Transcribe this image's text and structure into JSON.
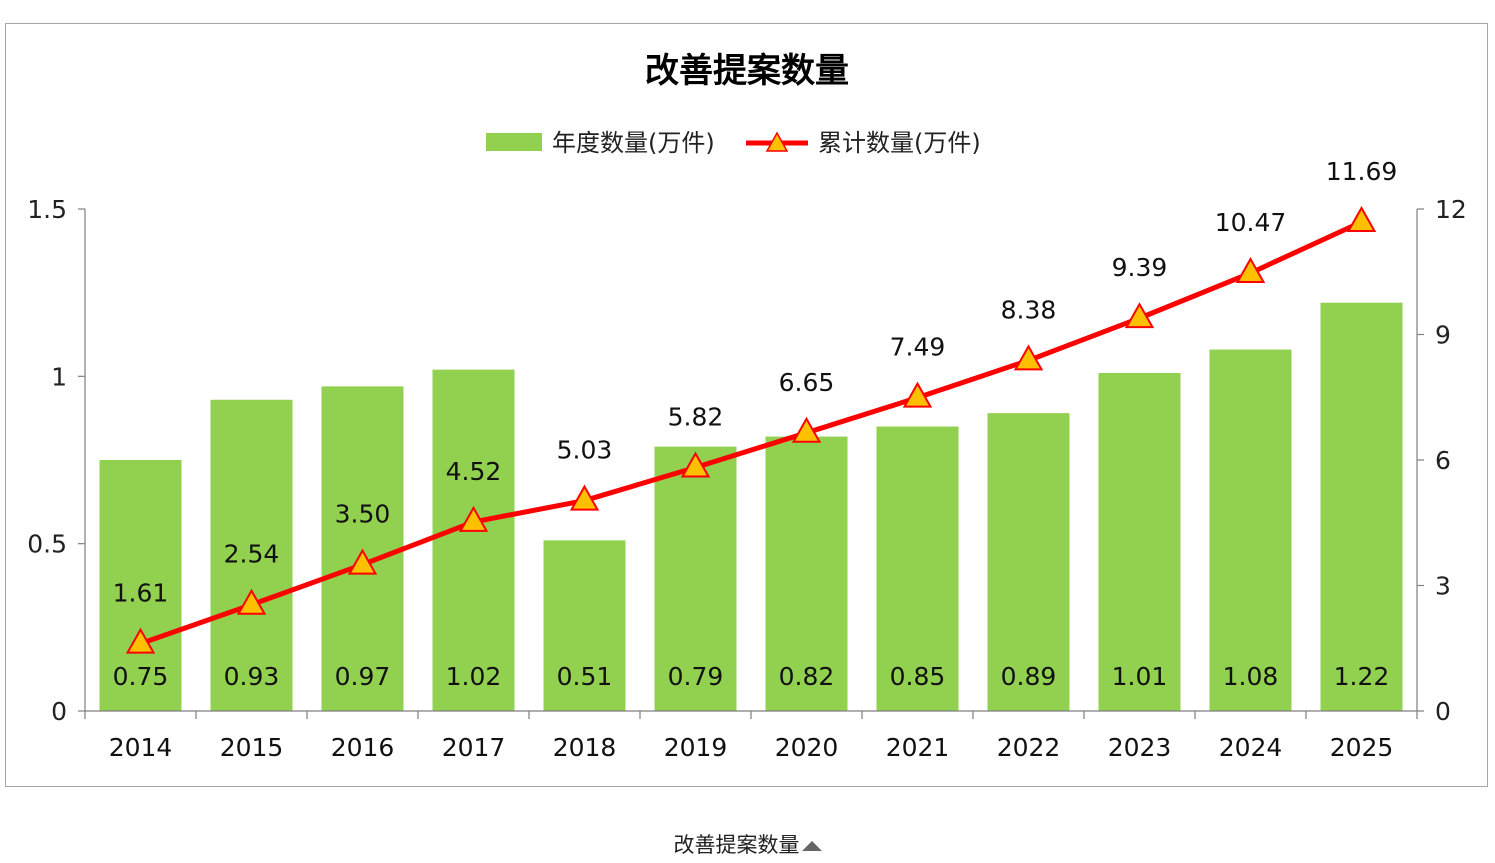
{
  "chart_data": {
    "type": "bar",
    "title": "改善提案数量",
    "categories": [
      "2014",
      "2015",
      "2016",
      "2017",
      "2018",
      "2019",
      "2020",
      "2021",
      "2022",
      "2023",
      "2024",
      "2025"
    ],
    "series": [
      {
        "name": "年度数量(万件)",
        "type": "bar",
        "axis": "left",
        "color": "#92d050",
        "values": [
          0.75,
          0.93,
          0.97,
          1.02,
          0.51,
          0.79,
          0.82,
          0.85,
          0.89,
          1.01,
          1.08,
          1.22
        ],
        "labels": [
          "0.75",
          "0.93",
          "0.97",
          "1.02",
          "0.51",
          "0.79",
          "0.82",
          "0.85",
          "0.89",
          "1.01",
          "1.08",
          "1.22"
        ]
      },
      {
        "name": "累计数量(万件)",
        "type": "line",
        "axis": "right",
        "color": "#ff0000",
        "marker_color": "#ffc000",
        "values": [
          1.61,
          2.54,
          3.5,
          4.52,
          5.03,
          5.82,
          6.65,
          7.49,
          8.38,
          9.39,
          10.47,
          11.69
        ],
        "labels": [
          "1.61",
          "2.54",
          "3.50",
          "4.52",
          "5.03",
          "5.82",
          "6.65",
          "7.49",
          "8.38",
          "9.39",
          "10.47",
          "11.69"
        ]
      }
    ],
    "y_left": {
      "ylim": [
        0,
        1.5
      ],
      "ticks": [
        "0",
        "0.5",
        "1",
        "1.5"
      ],
      "tick_values": [
        0,
        0.5,
        1,
        1.5
      ]
    },
    "y_right": {
      "ylim": [
        0,
        12
      ],
      "ticks": [
        "0",
        "3",
        "6",
        "9",
        "12"
      ],
      "tick_values": [
        0,
        3,
        6,
        9,
        12
      ]
    },
    "legend_position": "top",
    "grid": false
  },
  "caption": "改善提案数量"
}
